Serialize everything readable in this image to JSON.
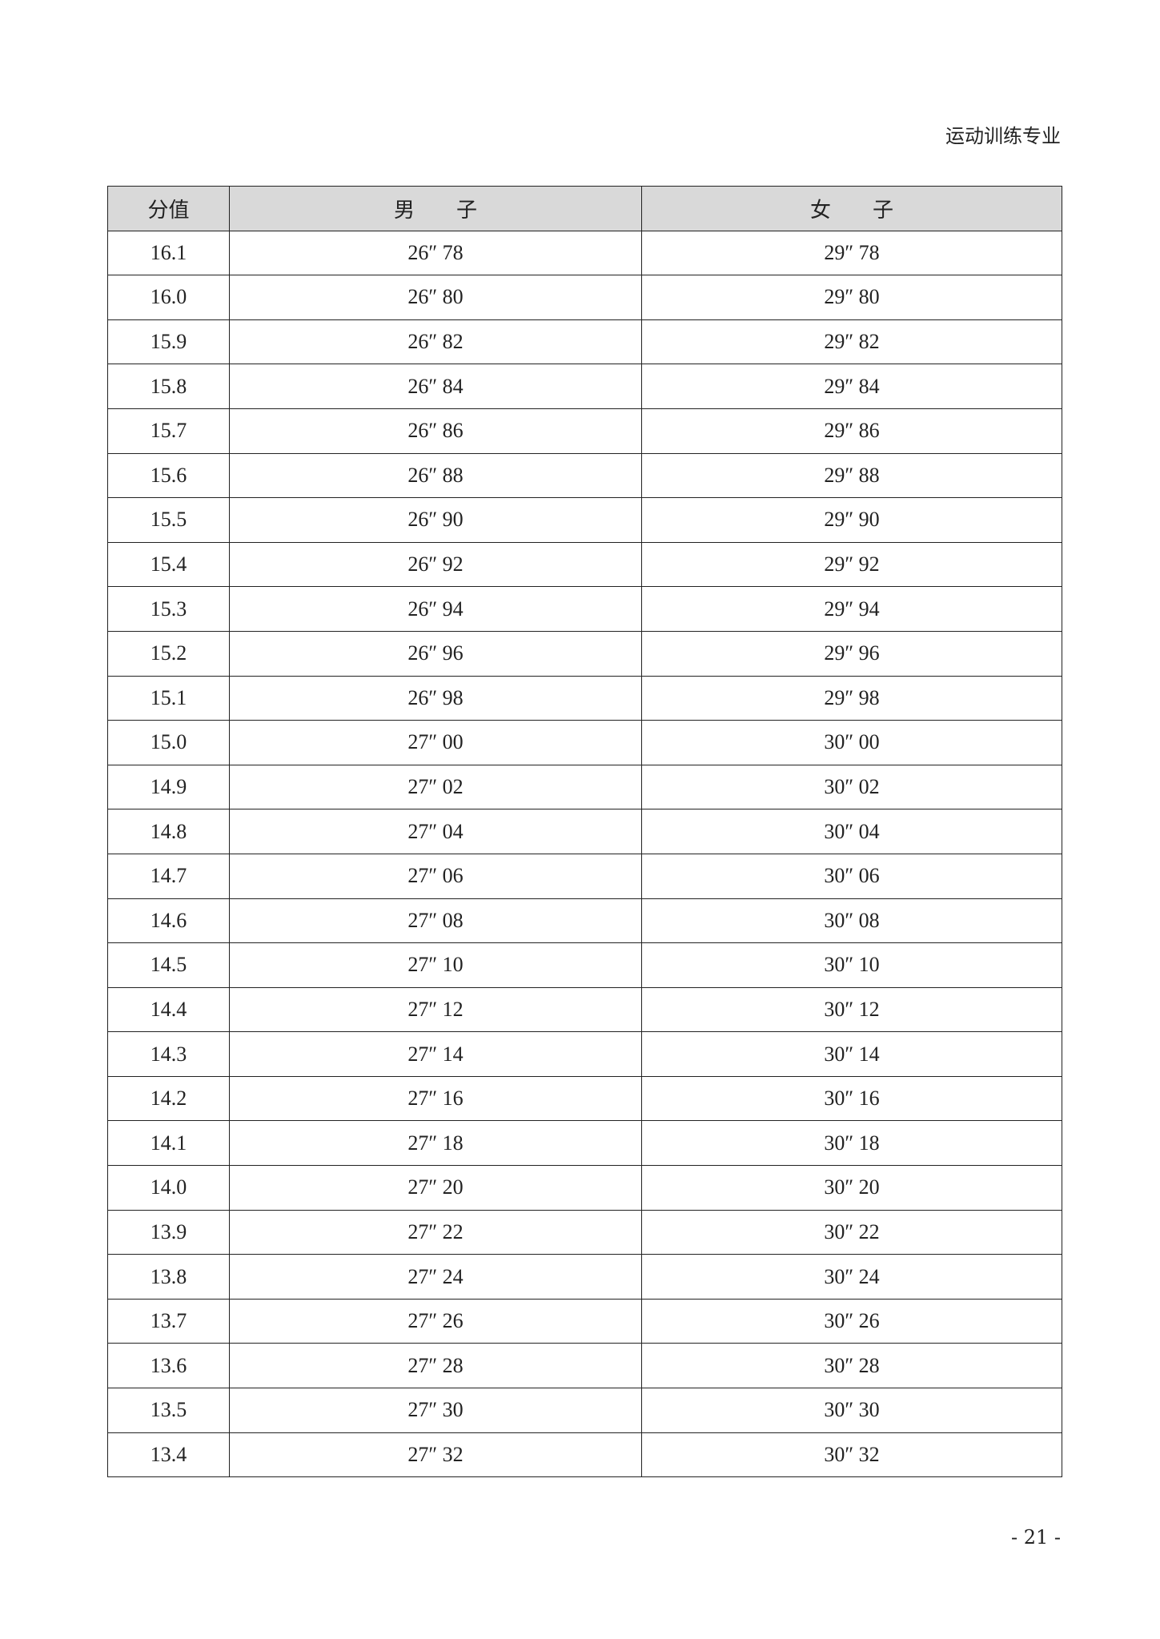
{
  "running_header": "运动训练专业",
  "table": {
    "headers": [
      "分值",
      "男　　子",
      "女　　子"
    ],
    "rows": [
      [
        "16.1",
        "26″ 78",
        "29″ 78"
      ],
      [
        "16.0",
        "26″ 80",
        "29″ 80"
      ],
      [
        "15.9",
        "26″ 82",
        "29″ 82"
      ],
      [
        "15.8",
        "26″ 84",
        "29″ 84"
      ],
      [
        "15.7",
        "26″ 86",
        "29″ 86"
      ],
      [
        "15.6",
        "26″ 88",
        "29″ 88"
      ],
      [
        "15.5",
        "26″ 90",
        "29″ 90"
      ],
      [
        "15.4",
        "26″ 92",
        "29″ 92"
      ],
      [
        "15.3",
        "26″ 94",
        "29″ 94"
      ],
      [
        "15.2",
        "26″ 96",
        "29″ 96"
      ],
      [
        "15.1",
        "26″ 98",
        "29″ 98"
      ],
      [
        "15.0",
        "27″ 00",
        "30″ 00"
      ],
      [
        "14.9",
        "27″ 02",
        "30″ 02"
      ],
      [
        "14.8",
        "27″ 04",
        "30″ 04"
      ],
      [
        "14.7",
        "27″ 06",
        "30″ 06"
      ],
      [
        "14.6",
        "27″ 08",
        "30″ 08"
      ],
      [
        "14.5",
        "27″ 10",
        "30″ 10"
      ],
      [
        "14.4",
        "27″ 12",
        "30″ 12"
      ],
      [
        "14.3",
        "27″ 14",
        "30″ 14"
      ],
      [
        "14.2",
        "27″ 16",
        "30″ 16"
      ],
      [
        "14.1",
        "27″ 18",
        "30″ 18"
      ],
      [
        "14.0",
        "27″ 20",
        "30″ 20"
      ],
      [
        "13.9",
        "27″ 22",
        "30″ 22"
      ],
      [
        "13.8",
        "27″ 24",
        "30″ 24"
      ],
      [
        "13.7",
        "27″ 26",
        "30″ 26"
      ],
      [
        "13.6",
        "27″ 28",
        "30″ 28"
      ],
      [
        "13.5",
        "27″ 30",
        "30″ 30"
      ],
      [
        "13.4",
        "27″ 32",
        "30″ 32"
      ]
    ]
  },
  "page_number": "- 21 -"
}
